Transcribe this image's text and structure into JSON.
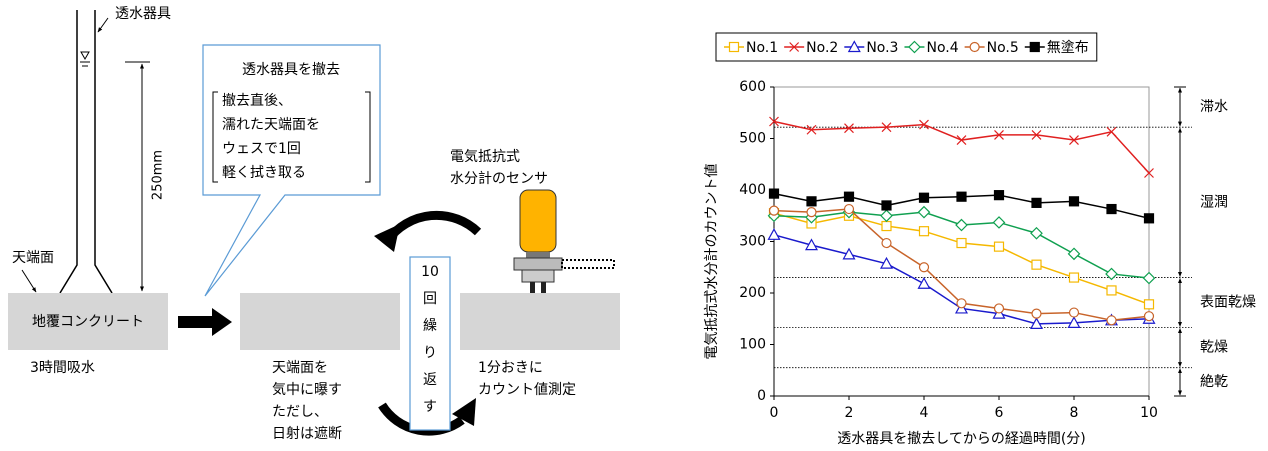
{
  "diagram": {
    "pipe_label": "透水器具",
    "height_label": "250mm",
    "top_label": "天端面",
    "block_label": "地覆コンクリート",
    "absorb_label": "3時間吸水",
    "callout_title": "透水器具を撤去",
    "callout_lines": [
      "撤去直後、",
      "濡れた天端面を",
      "ウェスで1回",
      "軽く拭き取る"
    ],
    "expose_lines": [
      "天端面を",
      "気中に曝す",
      "ただし、",
      "日射は遮断"
    ],
    "repeat_lines": [
      "10",
      "回",
      "繰",
      "り",
      "返",
      "す"
    ],
    "sensor_lines": [
      "電気抵抗式",
      "水分計のセンサ"
    ],
    "measure_lines": [
      "1分おきに",
      "カウント値測定"
    ]
  },
  "chart_data": {
    "type": "line",
    "x_label": "透水器具を撤去してからの経過時間(分)",
    "y_label": "電気抵抗式水分計のカウント値",
    "x": [
      0,
      1,
      2,
      3,
      4,
      5,
      6,
      7,
      8,
      9,
      10
    ],
    "xlim": [
      0,
      10
    ],
    "xticks": [
      0,
      2,
      4,
      6,
      8,
      10
    ],
    "ylim": [
      0,
      600
    ],
    "yticks": [
      0,
      100,
      200,
      300,
      400,
      500,
      600
    ],
    "legend": "top",
    "series": [
      {
        "name": "No.1",
        "color": "#f5b800",
        "marker": "square-open",
        "values": [
          355,
          335,
          350,
          330,
          320,
          297,
          290,
          255,
          230,
          205,
          178
        ]
      },
      {
        "name": "No.2",
        "color": "#e02020",
        "marker": "x",
        "values": [
          533,
          517,
          520,
          522,
          527,
          497,
          507,
          507,
          497,
          513,
          433
        ]
      },
      {
        "name": "No.3",
        "color": "#1a1acc",
        "marker": "triangle-open",
        "values": [
          313,
          293,
          275,
          257,
          218,
          170,
          160,
          140,
          142,
          147,
          150
        ]
      },
      {
        "name": "No.4",
        "color": "#10a050",
        "marker": "diamond-open",
        "values": [
          350,
          347,
          357,
          350,
          357,
          332,
          337,
          316,
          276,
          237,
          229
        ]
      },
      {
        "name": "No.5",
        "color": "#c8642a",
        "marker": "circle-open",
        "values": [
          360,
          357,
          363,
          297,
          250,
          180,
          170,
          160,
          162,
          147,
          155
        ]
      },
      {
        "name": "無塗布",
        "color": "#000000",
        "marker": "square",
        "values": [
          393,
          378,
          387,
          370,
          385,
          387,
          390,
          375,
          378,
          363,
          345
        ]
      }
    ],
    "thresholds": [
      522,
      230,
      133,
      55
    ],
    "zones": [
      "滞水",
      "湿潤",
      "表面乾燥",
      "乾燥",
      "絶乾"
    ]
  }
}
